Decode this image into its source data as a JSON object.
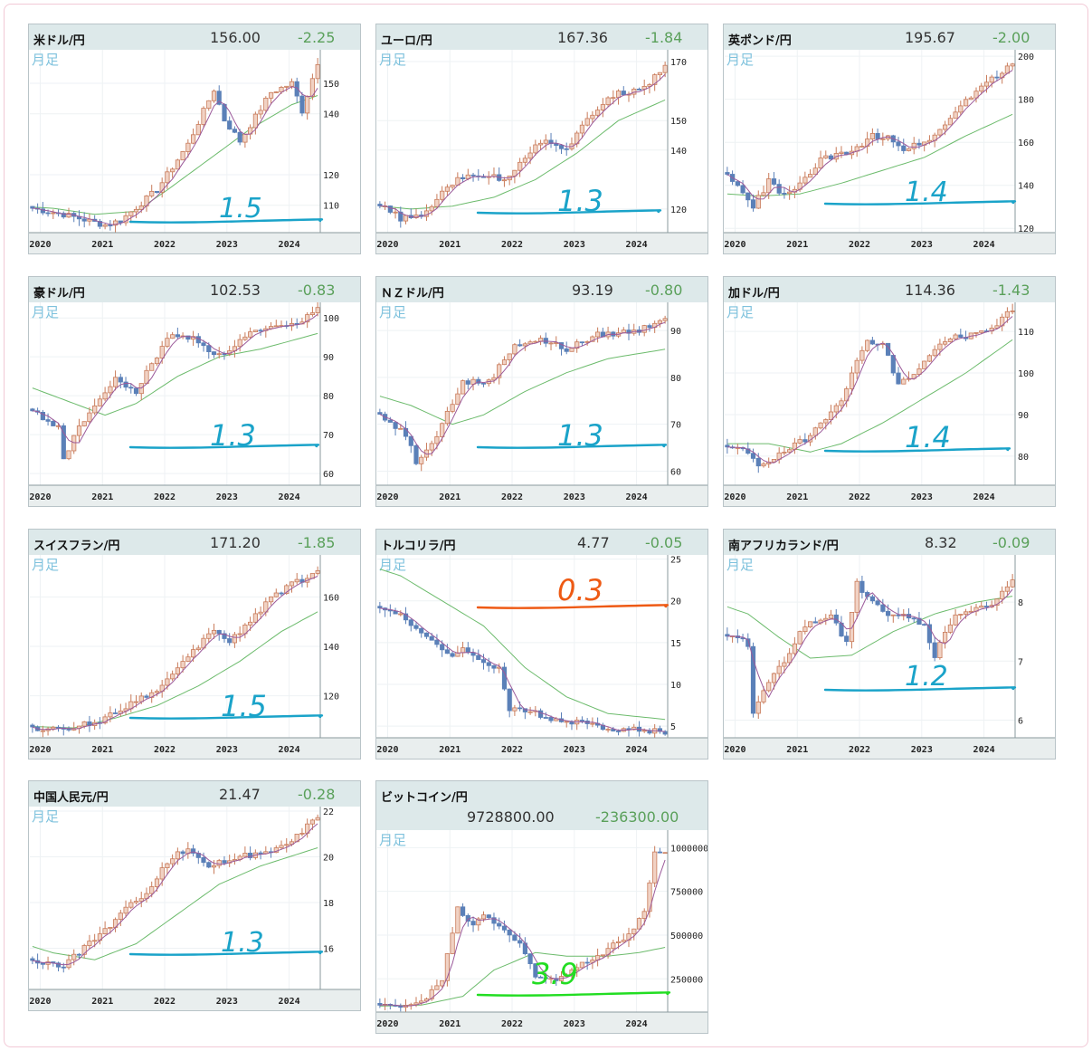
{
  "cards": [
    {
      "name": "米ドル/円",
      "price": "156.00",
      "change": "-2.25",
      "period": "月足",
      "y_ticks": [
        "150",
        "140",
        "120",
        "110"
      ],
      "annotation": "1.5",
      "ann_color": "#1aa3c9"
    },
    {
      "name": "ユーロ/円",
      "price": "167.36",
      "change": "-1.84",
      "period": "月足",
      "y_ticks": [
        "170",
        "150",
        "140",
        "120"
      ],
      "annotation": "1.3",
      "ann_color": "#1aa3c9"
    },
    {
      "name": "英ポンド/円",
      "price": "195.67",
      "change": "-2.00",
      "period": "月足",
      "y_ticks": [
        "200",
        "180",
        "160",
        "140",
        "120"
      ],
      "annotation": "1.4",
      "ann_color": "#1aa3c9"
    },
    {
      "name": "豪ドル/円",
      "price": "102.53",
      "change": "-0.83",
      "period": "月足",
      "y_ticks": [
        "100",
        "90",
        "80",
        "70",
        "60"
      ],
      "annotation": "1.3",
      "ann_color": "#1aa3c9"
    },
    {
      "name": "ＮＺドル/円",
      "price": "93.19",
      "change": "-0.80",
      "period": "月足",
      "y_ticks": [
        "90",
        "80",
        "70",
        "60"
      ],
      "annotation": "1.3",
      "ann_color": "#1aa3c9"
    },
    {
      "name": "加ドル/円",
      "price": "114.36",
      "change": "-1.43",
      "period": "月足",
      "y_ticks": [
        "110",
        "100",
        "90",
        "80"
      ],
      "annotation": "1.4",
      "ann_color": "#1aa3c9"
    },
    {
      "name": "スイスフラン/円",
      "price": "171.20",
      "change": "-1.85",
      "period": "月足",
      "y_ticks": [
        "160",
        "140",
        "120"
      ],
      "annotation": "1.5",
      "ann_color": "#1aa3c9"
    },
    {
      "name": "トルコリラ/円",
      "price": "4.77",
      "change": "-0.05",
      "period": "月足",
      "y_ticks": [
        "25",
        "20",
        "15",
        "10",
        "5"
      ],
      "annotation": "0.3",
      "ann_color": "#ee5a14"
    },
    {
      "name": "南アフリカランド/円",
      "price": "8.32",
      "change": "-0.09",
      "period": "月足",
      "y_ticks": [
        "8",
        "7",
        "6"
      ],
      "annotation": "1.2",
      "ann_color": "#1aa3c9"
    },
    {
      "name": "中国人民元/円",
      "price": "21.47",
      "change": "-0.28",
      "period": "月足",
      "y_ticks": [
        "22",
        "20",
        "18",
        "16"
      ],
      "annotation": "1.3",
      "ann_color": "#1aa3c9"
    },
    {
      "name": "ビットコイン/円",
      "price": "9728800.00",
      "change": "-236300.00",
      "period": "月足",
      "y_ticks": [
        "1000000",
        "750000",
        "500000",
        "250000"
      ],
      "annotation": "3.9",
      "ann_color": "#22dd22"
    }
  ],
  "chart_data": [
    {
      "type": "candlestick",
      "title": "米ドル/円",
      "x_ticks": [
        "2020",
        "2021",
        "2022",
        "2023",
        "2024"
      ],
      "y_ticks": [
        150,
        140,
        120,
        110
      ],
      "ylim": [
        101,
        161
      ]
    },
    {
      "type": "candlestick",
      "title": "ユーロ/円",
      "x_ticks": [
        "2020",
        "2021",
        "2022",
        "2023",
        "2024"
      ],
      "y_ticks": [
        170,
        150,
        140,
        120
      ],
      "ylim": [
        112,
        174
      ]
    },
    {
      "type": "candlestick",
      "title": "英ポンド/円",
      "x_ticks": [
        "2020",
        "2021",
        "2022",
        "2023",
        "2024"
      ],
      "y_ticks": [
        200,
        180,
        160,
        140,
        120
      ],
      "ylim": [
        118,
        203
      ]
    },
    {
      "type": "candlestick",
      "title": "豪ドル/円",
      "x_ticks": [
        "2020",
        "2021",
        "2022",
        "2023",
        "2024"
      ],
      "y_ticks": [
        100,
        90,
        80,
        70,
        60
      ],
      "ylim": [
        57,
        104
      ]
    },
    {
      "type": "candlestick",
      "title": "ＮＺドル/円",
      "x_ticks": [
        "2020",
        "2021",
        "2022",
        "2023",
        "2024"
      ],
      "y_ticks": [
        90,
        80,
        70,
        60
      ],
      "ylim": [
        57,
        96
      ]
    },
    {
      "type": "candlestick",
      "title": "加ドル/円",
      "x_ticks": [
        "2020",
        "2021",
        "2022",
        "2023",
        "2024"
      ],
      "y_ticks": [
        110,
        100,
        90,
        80
      ],
      "ylim": [
        73,
        117
      ]
    },
    {
      "type": "candlestick",
      "title": "スイスフラン/円",
      "x_ticks": [
        "2020",
        "2021",
        "2022",
        "2023",
        "2024"
      ],
      "y_ticks": [
        160,
        140,
        120
      ],
      "ylim": [
        103,
        177
      ]
    },
    {
      "type": "candlestick",
      "title": "トルコリラ/円",
      "x_ticks": [
        "2020",
        "2021",
        "2022",
        "2023",
        "2024"
      ],
      "y_ticks": [
        25,
        20,
        15,
        10,
        5
      ],
      "ylim": [
        3.6,
        25.5
      ]
    },
    {
      "type": "candlestick",
      "title": "南アフリカランド/円",
      "x_ticks": [
        "2020",
        "2021",
        "2022",
        "2023",
        "2024"
      ],
      "y_ticks": [
        8,
        7,
        6
      ],
      "ylim": [
        5.7,
        8.8
      ]
    },
    {
      "type": "candlestick",
      "title": "中国人民元/円",
      "x_ticks": [
        "2020",
        "2021",
        "2022",
        "2023",
        "2024"
      ],
      "y_ticks": [
        22,
        20,
        18,
        16
      ],
      "ylim": [
        14.2,
        22.2
      ]
    },
    {
      "type": "candlestick",
      "title": "ビットコイン/円",
      "x_ticks": [
        "2020",
        "2021",
        "2022",
        "2023",
        "2024"
      ],
      "y_ticks": [
        1000000,
        750000,
        500000,
        250000
      ],
      "ylim": [
        60000,
        1100000
      ]
    }
  ]
}
